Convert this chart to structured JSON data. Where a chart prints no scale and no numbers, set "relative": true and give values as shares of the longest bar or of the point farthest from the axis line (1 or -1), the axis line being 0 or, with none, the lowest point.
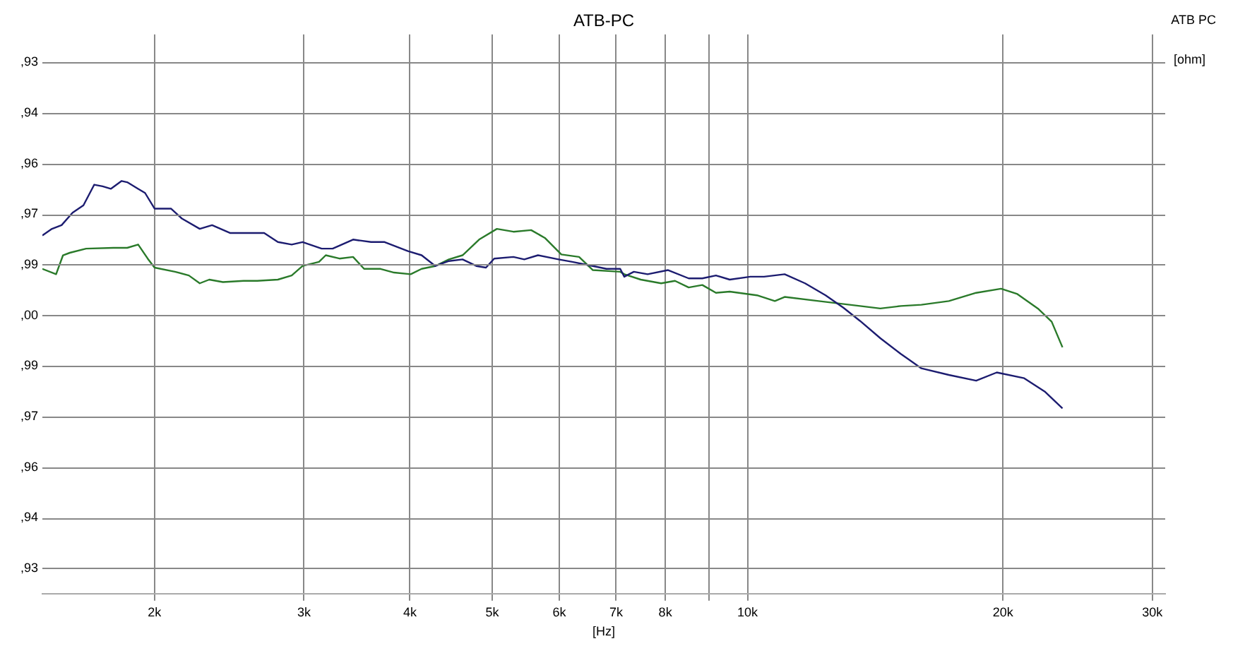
{
  "chart_data": {
    "type": "line",
    "title": "ATB-PC",
    "xlabel": "[Hz]",
    "annotations": [
      "ATB PC",
      "[ohm]",
      ",93",
      ",94",
      ",96",
      ",97",
      ",99",
      ",00",
      ",99",
      ",97",
      ",96",
      ",94",
      ",93"
    ],
    "log": "x",
    "grid": true,
    "legend": false,
    "marker": "none",
    "line_style": "solid",
    "relative": true,
    "xlim": [
      1475,
      31070
    ],
    "xticks": [
      {
        "value": 2000,
        "label": "2k"
      },
      {
        "value": 3000,
        "label": "3k"
      },
      {
        "value": 4000,
        "label": "4k"
      },
      {
        "value": 5000,
        "label": "5k"
      },
      {
        "value": 6000,
        "label": "6k"
      },
      {
        "value": 7000,
        "label": "7k"
      },
      {
        "value": 8000,
        "label": "8k"
      },
      {
        "value": 9000,
        "label": null
      },
      {
        "value": 10000,
        "label": "10k"
      },
      {
        "value": 20000,
        "label": "20k"
      },
      {
        "value": 30000,
        "label": "30k"
      }
    ],
    "series": [
      {
        "color": "#1c1c70",
        "x": [
          1475,
          1514,
          1554,
          1601,
          1649,
          1698,
          1737,
          1776,
          1829,
          1857,
          1913,
          1949,
          2000,
          2091,
          2154,
          2261,
          2338,
          2454,
          2547,
          2693,
          2795,
          2902,
          2989,
          3148,
          3243,
          3428,
          3599,
          3734,
          3978,
          4129,
          4285,
          4446,
          4614,
          4790,
          4917,
          5028,
          5297,
          5456,
          5662,
          5988,
          6215,
          6572,
          6819,
          7078,
          7157,
          7345,
          7625,
          8061,
          8524,
          8845,
          9180,
          9528,
          10074,
          10457,
          11060,
          11690,
          12360,
          12970,
          13570,
          14340,
          15160,
          16030,
          17270,
          18600,
          19670,
          21190,
          22400,
          23510
        ],
        "values": [
          0.868,
          0.884,
          0.893,
          0.923,
          0.941,
          0.991,
          0.987,
          0.981,
          1.0,
          0.997,
          0.981,
          0.971,
          0.933,
          0.933,
          0.909,
          0.884,
          0.893,
          0.874,
          0.874,
          0.874,
          0.852,
          0.846,
          0.852,
          0.836,
          0.836,
          0.858,
          0.852,
          0.852,
          0.83,
          0.82,
          0.794,
          0.806,
          0.81,
          0.794,
          0.79,
          0.812,
          0.816,
          0.81,
          0.82,
          0.81,
          0.804,
          0.794,
          0.787,
          0.787,
          0.768,
          0.78,
          0.774,
          0.784,
          0.764,
          0.764,
          0.771,
          0.761,
          0.768,
          0.768,
          0.774,
          0.752,
          0.723,
          0.693,
          0.661,
          0.619,
          0.581,
          0.546,
          0.53,
          0.516,
          0.536,
          0.522,
          0.49,
          0.449
        ]
      },
      {
        "color": "#2a7a2a",
        "x": [
          1475,
          1531,
          1560,
          1589,
          1661,
          1789,
          1857,
          1913,
          1963,
          2000,
          2114,
          2195,
          2261,
          2320,
          2408,
          2547,
          2643,
          2795,
          2902,
          2989,
          3125,
          3183,
          3304,
          3428,
          3532,
          3693,
          3832,
          4008,
          4129,
          4285,
          4446,
          4614,
          4826,
          5065,
          5297,
          5558,
          5769,
          6033,
          6331,
          6572,
          7078,
          7157,
          7484,
          7910,
          8213,
          8524,
          8845,
          9180,
          9528,
          10260,
          10770,
          11060,
          12130,
          12830,
          13570,
          14340,
          15160,
          16030,
          17270,
          18600,
          19900,
          20800,
          21990,
          22830,
          23510
        ],
        "values": [
          0.787,
          0.774,
          0.82,
          0.826,
          0.836,
          0.838,
          0.838,
          0.846,
          0.812,
          0.79,
          0.78,
          0.771,
          0.752,
          0.761,
          0.755,
          0.758,
          0.758,
          0.761,
          0.771,
          0.794,
          0.804,
          0.82,
          0.812,
          0.816,
          0.787,
          0.787,
          0.778,
          0.774,
          0.787,
          0.794,
          0.81,
          0.82,
          0.858,
          0.884,
          0.877,
          0.881,
          0.862,
          0.822,
          0.816,
          0.784,
          0.78,
          0.774,
          0.761,
          0.752,
          0.758,
          0.742,
          0.748,
          0.729,
          0.732,
          0.723,
          0.709,
          0.719,
          0.709,
          0.703,
          0.697,
          0.691,
          0.697,
          0.7,
          0.709,
          0.729,
          0.739,
          0.726,
          0.691,
          0.659,
          0.597
        ]
      }
    ]
  }
}
